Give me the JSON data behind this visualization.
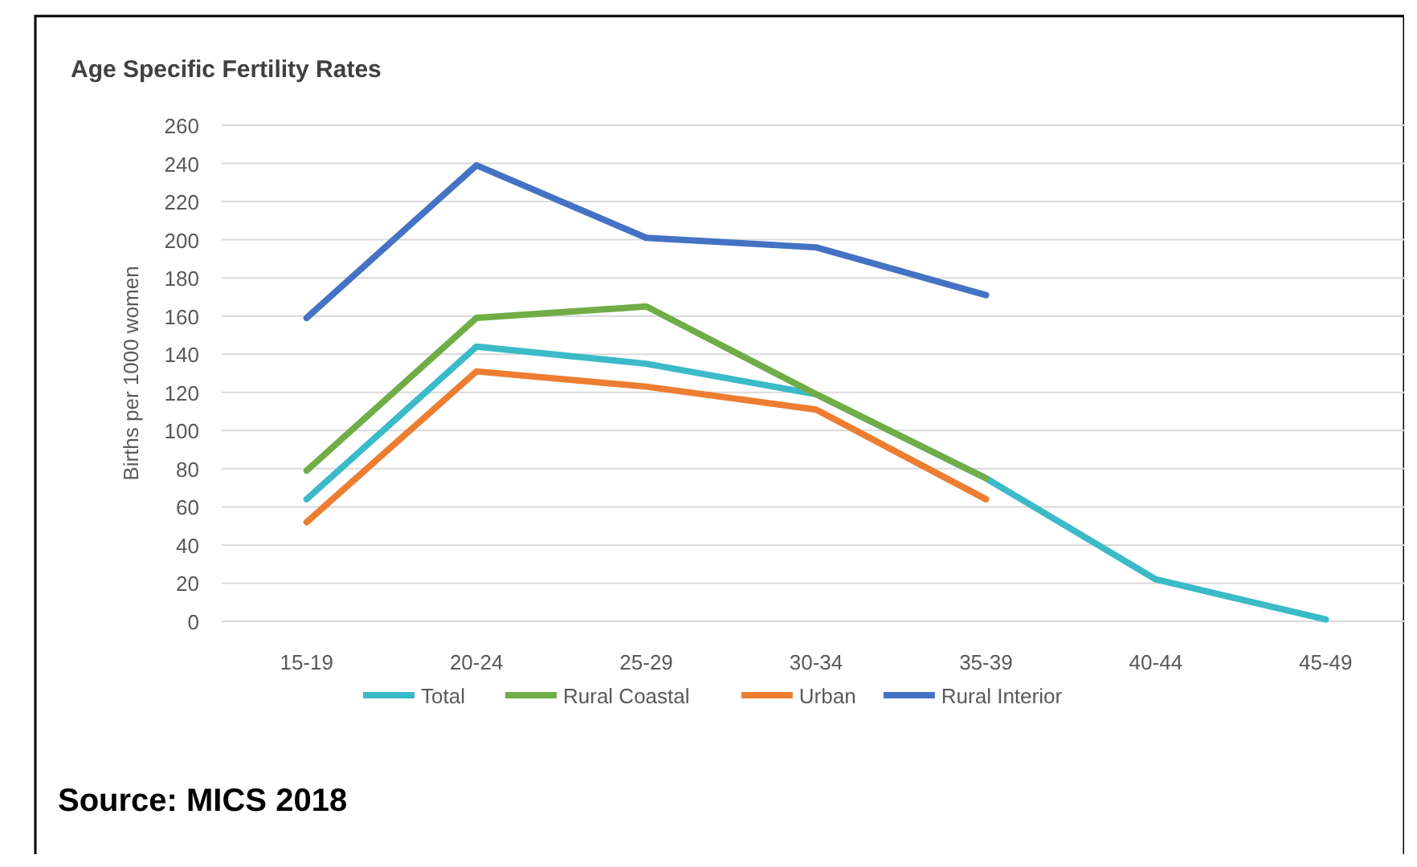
{
  "chart_data": {
    "type": "line",
    "title": "Age Specific Fertility Rates",
    "ylabel": "Births per 1000 women",
    "categories": [
      "15-19",
      "20-24",
      "25-29",
      "30-34",
      "35-39",
      "40-44",
      "45-49"
    ],
    "series": [
      {
        "name": "Total",
        "color": "#3bbac8",
        "values": [
          64,
          144,
          135,
          119,
          75,
          22,
          1
        ]
      },
      {
        "name": "Rural Coastal",
        "color": "#70ad47",
        "values": [
          79,
          159,
          165,
          119,
          75,
          null,
          null
        ]
      },
      {
        "name": "Urban",
        "color": "#ed7d31",
        "values": [
          52,
          131,
          123,
          111,
          64,
          null,
          null
        ]
      },
      {
        "name": "Rural Interior",
        "color": "#4472c4",
        "values": [
          159,
          239,
          201,
          196,
          171,
          null,
          null
        ]
      }
    ],
    "ylim": [
      0,
      260
    ],
    "yticks": [
      0,
      20,
      40,
      60,
      80,
      100,
      120,
      140,
      160,
      180,
      200,
      220,
      240,
      260
    ],
    "grid": "y",
    "legend": "bottom",
    "marker": "none",
    "line_style": "solid",
    "annotations": [
      "Source: MICS 2018"
    ]
  }
}
